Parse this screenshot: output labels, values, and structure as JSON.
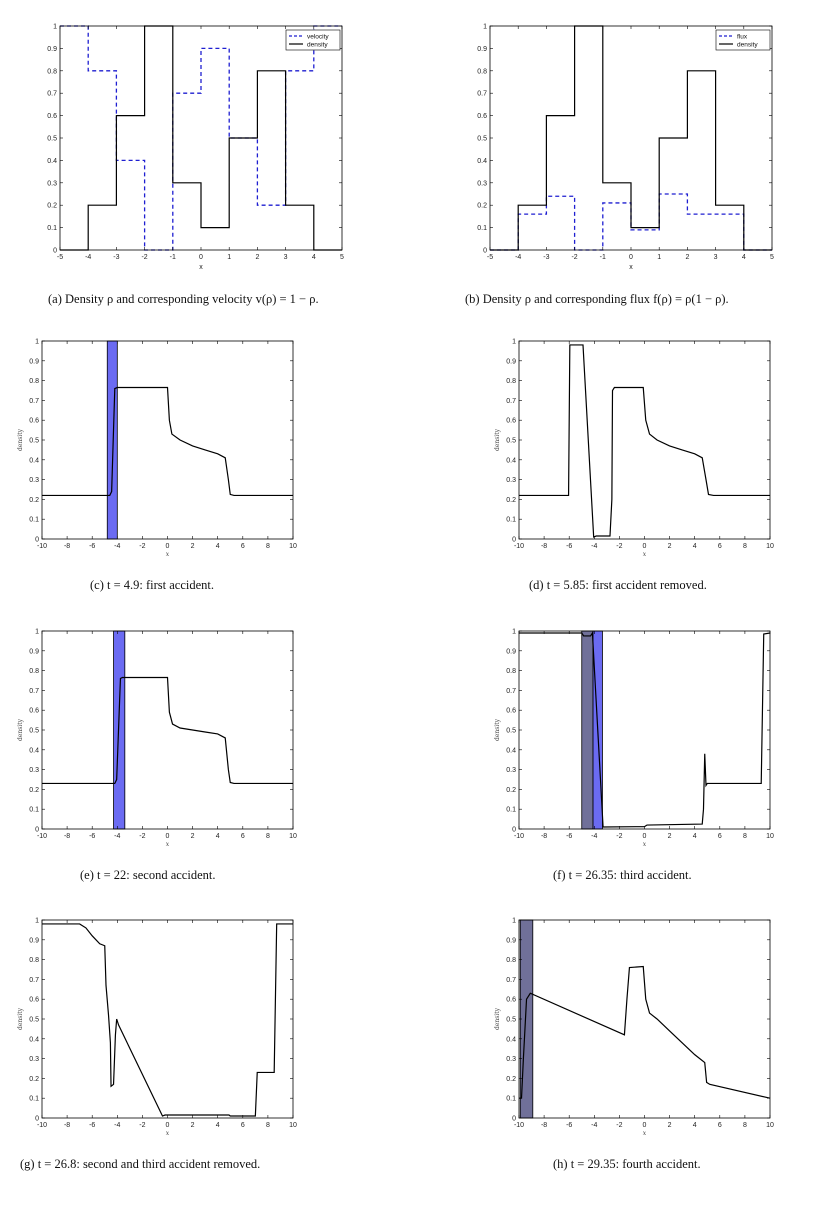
{
  "chart_data": [
    {
      "id": "a",
      "type": "line",
      "caption": "(a) Density ρ and corresponding velocity v(ρ) = 1 − ρ.",
      "xlabel": "x",
      "ylabel": "",
      "xlim": [
        -5,
        5
      ],
      "ylim": [
        0,
        1
      ],
      "xticks": [
        -5,
        -4,
        -3,
        -2,
        -1,
        0,
        1,
        2,
        3,
        4,
        5
      ],
      "yticks": [
        0,
        0.1,
        0.2,
        0.3,
        0.4,
        0.5,
        0.6,
        0.7,
        0.8,
        0.9,
        1
      ],
      "legend": "top-right",
      "series": [
        {
          "name": "velocity",
          "color": "#1f1fd1",
          "style": "dashed",
          "x": [
            -5,
            -4,
            -4,
            -3,
            -3,
            -2,
            -2,
            -1,
            -1,
            0,
            0,
            1,
            1,
            2,
            2,
            3,
            3,
            4,
            4,
            5
          ],
          "y": [
            1,
            1,
            0.8,
            0.8,
            0.4,
            0.4,
            0,
            0,
            0.7,
            0.7,
            0.9,
            0.9,
            0.5,
            0.5,
            0.2,
            0.2,
            0.8,
            0.8,
            1,
            1
          ]
        },
        {
          "name": "density",
          "color": "#000000",
          "style": "solid",
          "x": [
            -5,
            -4,
            -4,
            -3,
            -3,
            -2,
            -2,
            -1,
            -1,
            0,
            0,
            1,
            1,
            2,
            2,
            3,
            3,
            4,
            4,
            5
          ],
          "y": [
            0,
            0,
            0.2,
            0.2,
            0.6,
            0.6,
            1,
            1,
            0.3,
            0.3,
            0.1,
            0.1,
            0.5,
            0.5,
            0.8,
            0.8,
            0.2,
            0.2,
            0,
            0
          ]
        }
      ],
      "bands": []
    },
    {
      "id": "b",
      "type": "line",
      "caption": "(b) Density ρ and corresponding flux f(ρ) = ρ(1 − ρ).",
      "xlabel": "x",
      "ylabel": "",
      "xlim": [
        -5,
        5
      ],
      "ylim": [
        0,
        1
      ],
      "xticks": [
        -5,
        -4,
        -3,
        -2,
        -1,
        0,
        1,
        2,
        3,
        4,
        5
      ],
      "yticks": [
        0,
        0.1,
        0.2,
        0.3,
        0.4,
        0.5,
        0.6,
        0.7,
        0.8,
        0.9,
        1
      ],
      "legend": "top-right",
      "series": [
        {
          "name": "flux",
          "color": "#1f1fd1",
          "style": "dashed",
          "x": [
            -5,
            -4,
            -4,
            -3,
            -3,
            -2,
            -2,
            -1,
            -1,
            0,
            0,
            1,
            1,
            2,
            2,
            3,
            3,
            4,
            4,
            5
          ],
          "y": [
            0,
            0,
            0.16,
            0.16,
            0.24,
            0.24,
            0,
            0,
            0.21,
            0.21,
            0.09,
            0.09,
            0.25,
            0.25,
            0.16,
            0.16,
            0.16,
            0.16,
            0,
            0
          ]
        },
        {
          "name": "density",
          "color": "#000000",
          "style": "solid",
          "x": [
            -5,
            -4,
            -4,
            -3,
            -3,
            -2,
            -2,
            -1,
            -1,
            0,
            0,
            1,
            1,
            2,
            2,
            3,
            3,
            4,
            4,
            5
          ],
          "y": [
            0,
            0,
            0.2,
            0.2,
            0.6,
            0.6,
            1,
            1,
            0.3,
            0.3,
            0.1,
            0.1,
            0.5,
            0.5,
            0.8,
            0.8,
            0.2,
            0.2,
            0,
            0
          ]
        }
      ],
      "bands": []
    },
    {
      "id": "c",
      "type": "line",
      "caption": "(c) t = 4.9: first accident.",
      "xlabel": "x",
      "ylabel": "density",
      "xlim": [
        -10,
        10
      ],
      "ylim": [
        0,
        1
      ],
      "xticks": [
        -10,
        -8,
        -6,
        -4,
        -2,
        0,
        2,
        4,
        6,
        8,
        10
      ],
      "yticks": [
        0,
        0.1,
        0.2,
        0.3,
        0.4,
        0.5,
        0.6,
        0.7,
        0.8,
        0.9,
        1
      ],
      "legend": "none",
      "series": [
        {
          "name": "",
          "color": "#000000",
          "style": "solid",
          "x": [
            -10,
            -4.6,
            -4.45,
            -4.2,
            -4.0,
            0,
            0.15,
            0.35,
            1,
            2,
            3,
            4,
            4.6,
            4.85,
            5.0,
            5.3,
            10
          ],
          "y": [
            0.22,
            0.22,
            0.24,
            0.76,
            0.765,
            0.765,
            0.6,
            0.53,
            0.5,
            0.47,
            0.45,
            0.43,
            0.41,
            0.3,
            0.225,
            0.22,
            0.22
          ]
        }
      ],
      "bands": [
        {
          "x0": -4.8,
          "x1": -4.0,
          "color": "#6b6bf2"
        }
      ]
    },
    {
      "id": "d",
      "type": "line",
      "caption": "(d) t = 5.85: first accident removed.",
      "xlabel": "x",
      "ylabel": "density",
      "xlim": [
        -10,
        10
      ],
      "ylim": [
        0,
        1
      ],
      "xticks": [
        -10,
        -8,
        -6,
        -4,
        -2,
        0,
        2,
        4,
        6,
        8,
        10
      ],
      "yticks": [
        0,
        0.1,
        0.2,
        0.3,
        0.4,
        0.5,
        0.6,
        0.7,
        0.8,
        0.9,
        1
      ],
      "legend": "none",
      "series": [
        {
          "name": "",
          "color": "#000000",
          "style": "solid",
          "x": [
            -10,
            -6.05,
            -5.95,
            -4.9,
            -4.05,
            -3.85,
            -2.75,
            -2.6,
            -2.55,
            -2.4,
            -0.1,
            0.1,
            0.4,
            1,
            2,
            3,
            4,
            4.6,
            4.9,
            5.1,
            5.5,
            10
          ],
          "y": [
            0.22,
            0.22,
            0.98,
            0.98,
            0.01,
            0.015,
            0.015,
            0.2,
            0.75,
            0.765,
            0.765,
            0.6,
            0.53,
            0.5,
            0.47,
            0.45,
            0.43,
            0.41,
            0.3,
            0.225,
            0.22,
            0.22
          ]
        }
      ],
      "bands": []
    },
    {
      "id": "e",
      "type": "line",
      "caption": "(e) t = 22: second accident.",
      "xlabel": "x",
      "ylabel": "density",
      "xlim": [
        -10,
        10
      ],
      "ylim": [
        0,
        1
      ],
      "xticks": [
        -10,
        -8,
        -6,
        -4,
        -2,
        0,
        2,
        4,
        6,
        8,
        10
      ],
      "yticks": [
        0,
        0.1,
        0.2,
        0.3,
        0.4,
        0.5,
        0.6,
        0.7,
        0.8,
        0.9,
        1
      ],
      "legend": "none",
      "series": [
        {
          "name": "",
          "color": "#000000",
          "style": "solid",
          "x": [
            -10,
            -4.2,
            -4.05,
            -3.75,
            -3.6,
            0,
            0.15,
            0.4,
            1,
            2,
            3,
            4,
            4.6,
            4.85,
            5.0,
            5.3,
            10
          ],
          "y": [
            0.23,
            0.23,
            0.25,
            0.76,
            0.765,
            0.765,
            0.59,
            0.53,
            0.51,
            0.5,
            0.49,
            0.48,
            0.46,
            0.3,
            0.235,
            0.23,
            0.23
          ]
        }
      ],
      "bands": [
        {
          "x0": -4.3,
          "x1": -3.4,
          "color": "#6b6bf2"
        }
      ]
    },
    {
      "id": "f",
      "type": "line",
      "caption": "(f) t = 26.35: third accident.",
      "xlabel": "x",
      "ylabel": "density",
      "xlim": [
        -10,
        10
      ],
      "ylim": [
        0,
        1
      ],
      "xticks": [
        -10,
        -8,
        -6,
        -4,
        -2,
        0,
        2,
        4,
        6,
        8,
        10
      ],
      "yticks": [
        0,
        0.1,
        0.2,
        0.3,
        0.4,
        0.5,
        0.6,
        0.7,
        0.8,
        0.9,
        1
      ],
      "legend": "none",
      "series": [
        {
          "name": "",
          "color": "#000000",
          "style": "solid",
          "x": [
            -10,
            -5.0,
            -4.85,
            -4.3,
            -4.15,
            -3.3,
            0,
            0.2,
            4.6,
            4.7,
            4.8,
            4.9,
            5.0,
            9.3,
            9.5,
            10
          ],
          "y": [
            0.99,
            0.99,
            0.975,
            0.975,
            0.99,
            0.01,
            0.012,
            0.02,
            0.025,
            0.1,
            0.38,
            0.22,
            0.23,
            0.23,
            0.985,
            0.99
          ]
        }
      ],
      "bands": [
        {
          "x0": -5.0,
          "x1": -4.1,
          "color": "#707099"
        },
        {
          "x0": -4.1,
          "x1": -3.35,
          "color": "#6b6bf2"
        }
      ]
    },
    {
      "id": "g",
      "type": "line",
      "caption": "(g) t = 26.8: second and third accident removed.",
      "xlabel": "x",
      "ylabel": "density",
      "xlim": [
        -10,
        10
      ],
      "ylim": [
        0,
        1
      ],
      "xticks": [
        -10,
        -8,
        -6,
        -4,
        -2,
        0,
        2,
        4,
        6,
        8,
        10
      ],
      "yticks": [
        0,
        0.1,
        0.2,
        0.3,
        0.4,
        0.5,
        0.6,
        0.7,
        0.8,
        0.9,
        1
      ],
      "legend": "none",
      "series": [
        {
          "name": "",
          "color": "#000000",
          "style": "solid",
          "x": [
            -10,
            -7.0,
            -6.5,
            -6.0,
            -5.4,
            -5.0,
            -4.9,
            -4.7,
            -4.55,
            -4.5,
            -4.3,
            -4.15,
            -4.05,
            -3.9,
            -0.4,
            -0.2,
            4.9,
            5.0,
            7.0,
            7.15,
            8.5,
            8.7,
            10
          ],
          "y": [
            0.98,
            0.98,
            0.96,
            0.92,
            0.88,
            0.87,
            0.67,
            0.52,
            0.38,
            0.16,
            0.17,
            0.42,
            0.5,
            0.47,
            0.01,
            0.015,
            0.015,
            0.01,
            0.01,
            0.23,
            0.23,
            0.98,
            0.98
          ]
        }
      ],
      "bands": []
    },
    {
      "id": "h",
      "type": "line",
      "caption": "(h) t = 29.35: fourth accident.",
      "xlabel": "x",
      "ylabel": "density",
      "xlim": [
        -10,
        10
      ],
      "ylim": [
        0,
        1
      ],
      "xticks": [
        -10,
        -8,
        -6,
        -4,
        -2,
        0,
        2,
        4,
        6,
        8,
        10
      ],
      "yticks": [
        0,
        0.1,
        0.2,
        0.3,
        0.4,
        0.5,
        0.6,
        0.7,
        0.8,
        0.9,
        1
      ],
      "legend": "none",
      "series": [
        {
          "name": "",
          "color": "#000000",
          "style": "solid",
          "x": [
            -10,
            -9.8,
            -9.65,
            -9.4,
            -9.1,
            -1.6,
            -1.4,
            -1.2,
            -0.1,
            0.1,
            0.4,
            1,
            2,
            3,
            4,
            4.8,
            4.95,
            5.2,
            10
          ],
          "y": [
            0.1,
            0.1,
            0.3,
            0.6,
            0.63,
            0.42,
            0.6,
            0.76,
            0.765,
            0.6,
            0.53,
            0.5,
            0.44,
            0.38,
            0.32,
            0.28,
            0.18,
            0.17,
            0.1
          ]
        }
      ],
      "bands": [
        {
          "x0": -9.9,
          "x1": -8.9,
          "color": "#707099"
        }
      ]
    }
  ]
}
